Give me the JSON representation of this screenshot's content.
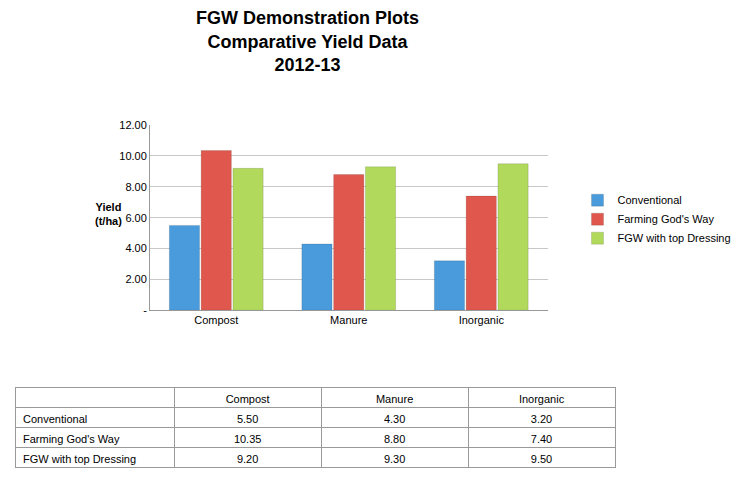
{
  "chart_data": {
    "type": "bar",
    "title": "FGW Demonstration Plots\nComparative Yield Data\n2012-13",
    "y_label": "Yield\n(t/ha)",
    "categories": [
      "Compost",
      "Manure",
      "Inorganic"
    ],
    "series": [
      {
        "name": "Conventional",
        "color": "#4a9bdc",
        "values": [
          5.5,
          4.3,
          3.2
        ],
        "value_labels": [
          "5.50",
          "4.30",
          "3.20"
        ]
      },
      {
        "name": "Farming God's Way",
        "color": "#e0584d",
        "values": [
          10.35,
          8.8,
          7.4
        ],
        "value_labels": [
          "10.35",
          "8.80",
          "7.40"
        ]
      },
      {
        "name": "FGW with top Dressing",
        "color": "#b1d95c",
        "values": [
          9.2,
          9.3,
          9.5
        ],
        "value_labels": [
          "9.20",
          "9.30",
          "9.50"
        ]
      }
    ],
    "ylim": [
      0,
      12
    ],
    "yticks": [
      {
        "value": 0,
        "label": "-"
      },
      {
        "value": 2,
        "label": "2.00"
      },
      {
        "value": 4,
        "label": "4.00"
      },
      {
        "value": 6,
        "label": "6.00"
      },
      {
        "value": 8,
        "label": "8.00"
      },
      {
        "value": 10,
        "label": "10.00"
      },
      {
        "value": 12,
        "label": "12.00"
      }
    ],
    "grid": true,
    "legend": "right"
  }
}
